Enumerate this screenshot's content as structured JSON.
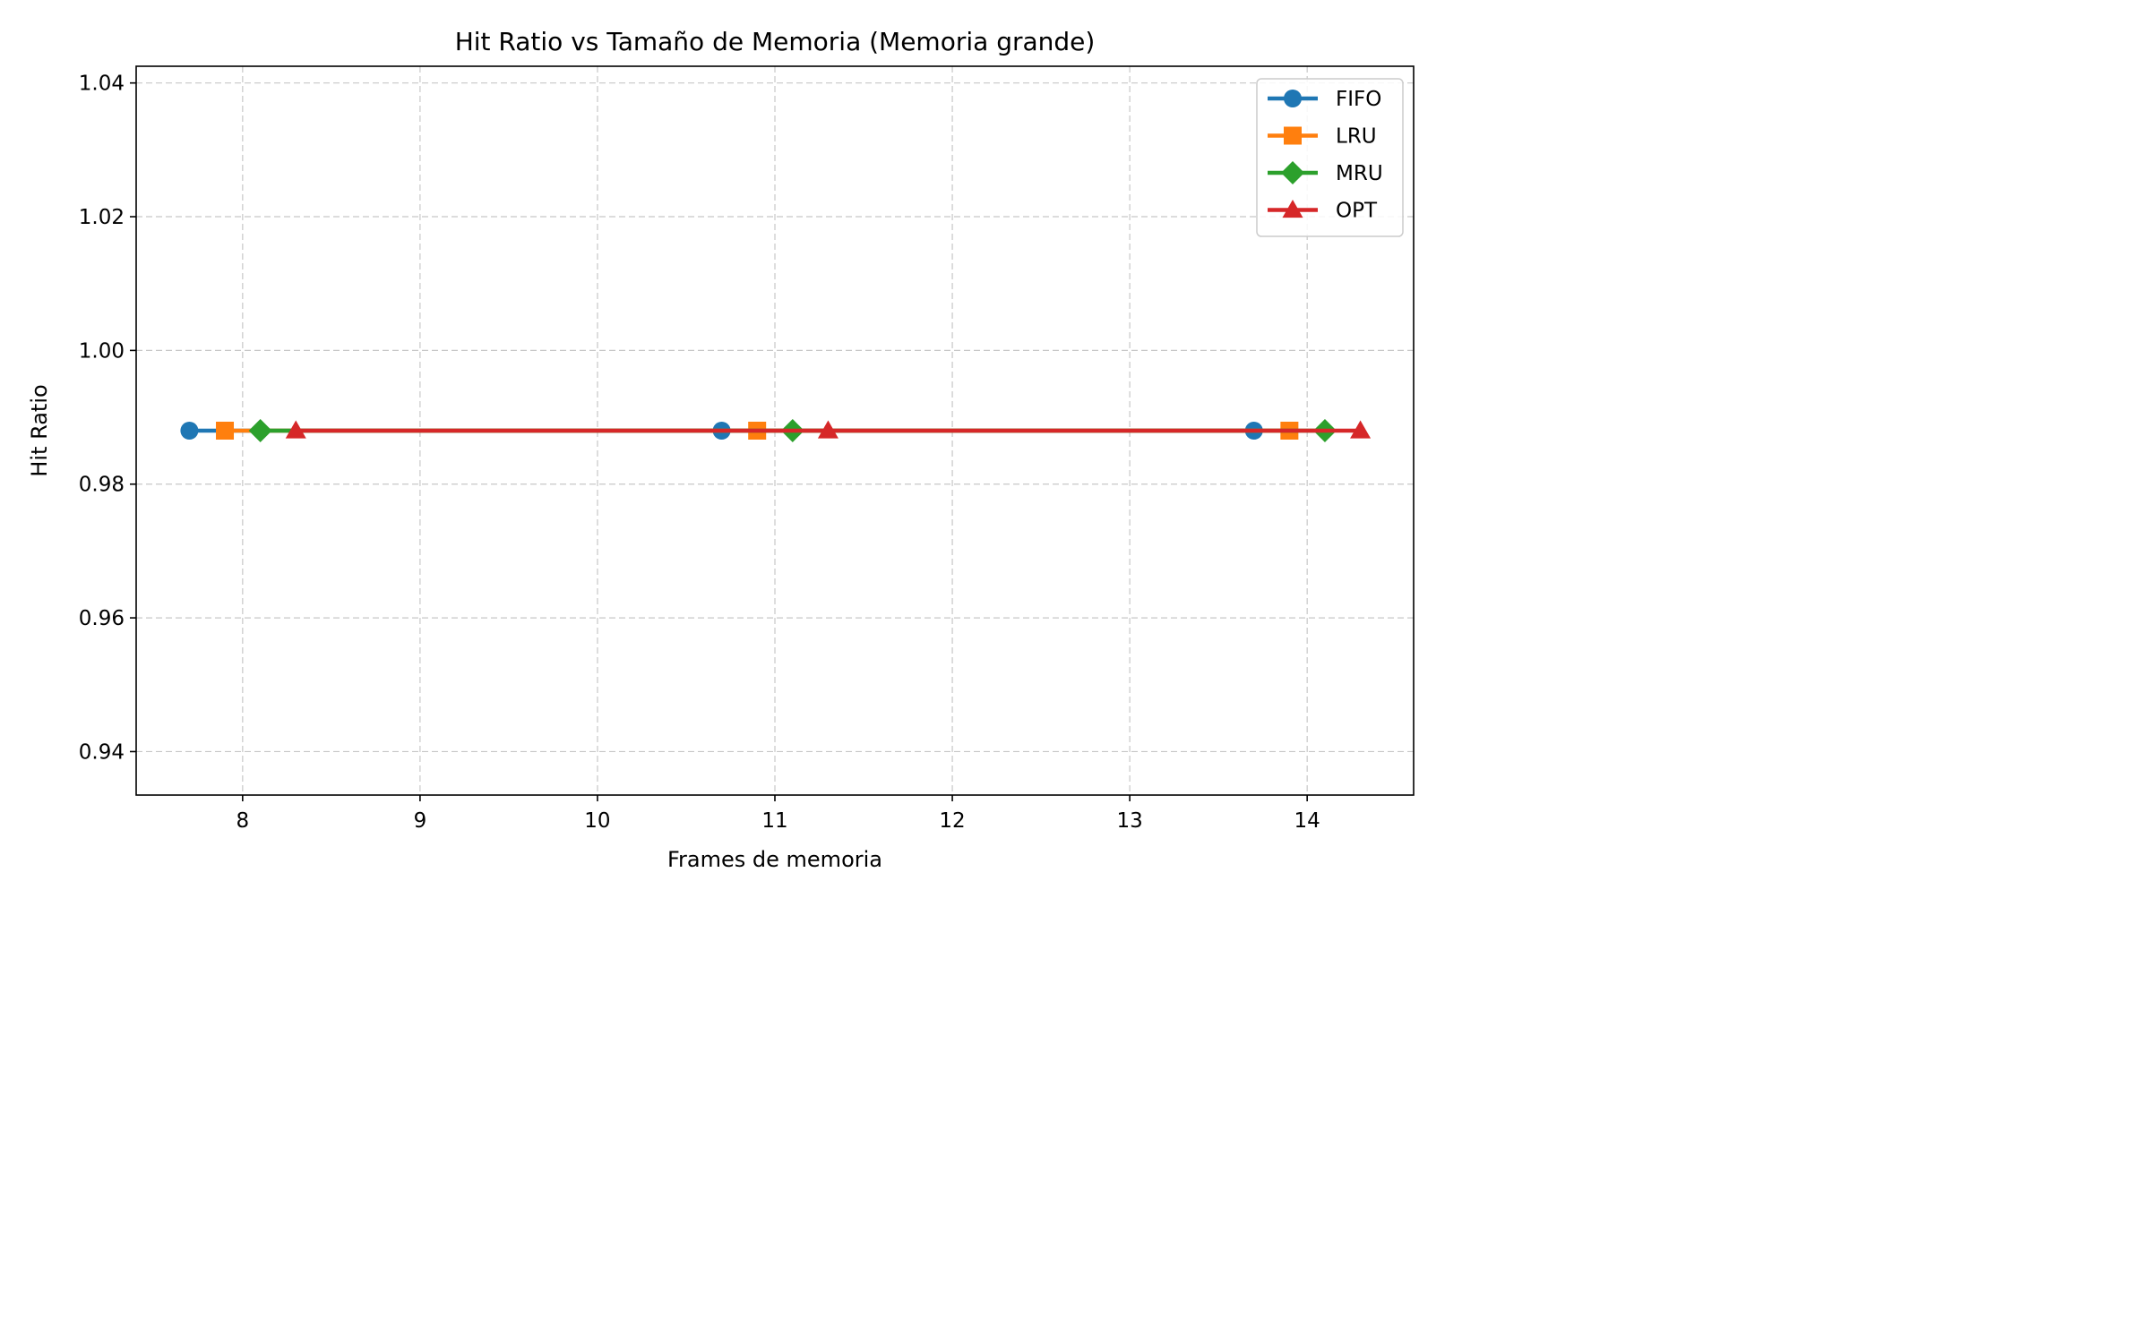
{
  "chart_data": {
    "type": "line",
    "title": "Hit Ratio vs Tamaño de Memoria (Memoria grande)",
    "xlabel": "Frames de memoria",
    "ylabel": "Hit Ratio",
    "xlim": [
      7.4,
      14.6
    ],
    "ylim": [
      0.9335,
      1.0425
    ],
    "x_ticks": [
      8,
      9,
      10,
      11,
      12,
      13,
      14
    ],
    "y_ticks": [
      0.94,
      0.96,
      0.98,
      1.0,
      1.02,
      1.04
    ],
    "x_tick_labels": [
      "8",
      "9",
      "10",
      "11",
      "12",
      "13",
      "14"
    ],
    "y_tick_labels": [
      "0.94",
      "0.96",
      "0.98",
      "1.00",
      "1.02",
      "1.04"
    ],
    "grid": true,
    "legend_position": "top-right",
    "series": [
      {
        "name": "FIFO",
        "color": "#1f77b4",
        "marker": "circle",
        "x": [
          7.7,
          10.7,
          13.7
        ],
        "y": [
          0.988,
          0.988,
          0.988
        ]
      },
      {
        "name": "LRU",
        "color": "#ff7f0e",
        "marker": "square",
        "x": [
          7.9,
          10.9,
          13.9
        ],
        "y": [
          0.988,
          0.988,
          0.988
        ]
      },
      {
        "name": "MRU",
        "color": "#2ca02c",
        "marker": "diamond",
        "x": [
          8.1,
          11.1,
          14.1
        ],
        "y": [
          0.988,
          0.988,
          0.988
        ]
      },
      {
        "name": "OPT",
        "color": "#d62728",
        "marker": "triangle",
        "x": [
          8.3,
          11.3,
          14.3
        ],
        "y": [
          0.988,
          0.988,
          0.988
        ]
      }
    ]
  }
}
